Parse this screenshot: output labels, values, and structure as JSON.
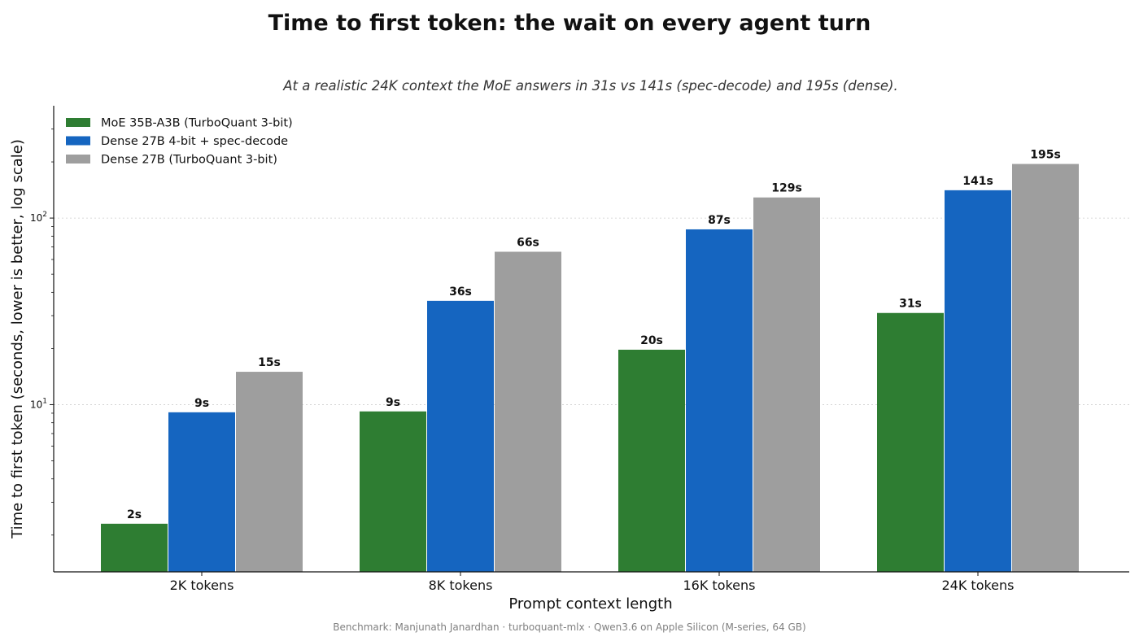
{
  "chart_data": {
    "type": "bar",
    "title": "Time to first token: the wait on every agent turn",
    "subtitle": "At a realistic 24K context the MoE answers in 31s vs 141s (spec-decode) and 195s (dense).",
    "xlabel": "Prompt context length",
    "ylabel": "Time to first token (seconds, lower is better, log scale)",
    "yscale": "log",
    "ylim": [
      1.27,
      400
    ],
    "y_ticks": [
      {
        "value": 10,
        "base": "10",
        "exp": "1"
      },
      {
        "value": 100,
        "base": "10",
        "exp": "2"
      }
    ],
    "grid": "horizontal dotted at major ticks",
    "legend_position": "top-left",
    "categories": [
      "2K tokens",
      "8K tokens",
      "16K tokens",
      "24K tokens"
    ],
    "series": [
      {
        "name": "MoE 35B-A3B (TurboQuant 3-bit)",
        "color": "#2e7d32",
        "values": [
          2.3,
          9.2,
          19.7,
          31
        ],
        "labels": [
          "2s",
          "9s",
          "20s",
          "31s"
        ]
      },
      {
        "name": "Dense 27B 4-bit + spec-decode",
        "color": "#1565c0",
        "values": [
          9.1,
          36,
          87,
          141
        ],
        "labels": [
          "9s",
          "36s",
          "87s",
          "141s"
        ]
      },
      {
        "name": "Dense 27B (TurboQuant 3-bit)",
        "color": "#9e9e9e",
        "values": [
          15,
          66,
          129,
          195
        ],
        "labels": [
          "15s",
          "66s",
          "129s",
          "195s"
        ]
      }
    ]
  },
  "footer": "Benchmark: Manjunath Janardhan · turboquant-mlx · Qwen3.6 on Apple Silicon (M-series, 64 GB)"
}
